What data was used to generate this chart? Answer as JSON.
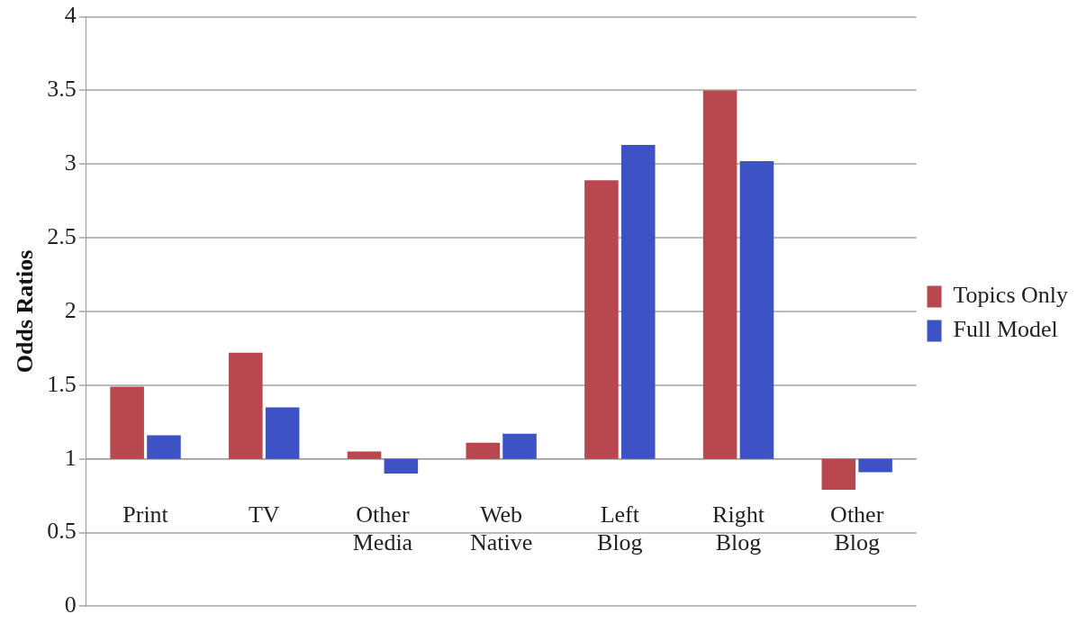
{
  "chart_data": {
    "type": "bar",
    "ylabel": "Odds Ratios",
    "categories": [
      "Print",
      "TV",
      "Other Media",
      "Web Native",
      "Left Blog",
      "Right Blog",
      "Other Blog"
    ],
    "series": [
      {
        "name": "Topics Only",
        "color": "#b8474f",
        "base": [
          1,
          1,
          1,
          1,
          1,
          1,
          1
        ],
        "values": [
          0.49,
          0.72,
          0.05,
          0.11,
          1.89,
          2.5,
          -0.21
        ]
      },
      {
        "name": "Full Model",
        "color": "#3d52c4",
        "base": [
          1,
          1,
          1,
          1,
          1,
          1,
          1
        ],
        "values": [
          0.16,
          0.35,
          -0.1,
          0.17,
          2.13,
          2.02,
          -0.09
        ]
      }
    ],
    "ylim": [
      0,
      4
    ],
    "yticks": [
      0,
      {
        "value": 0.5,
        "label": "0.5"
      },
      1,
      {
        "value": 1.5,
        "label": "1.5"
      },
      2,
      {
        "value": 2.5,
        "label": "2.5"
      },
      3,
      {
        "value": 3.5,
        "label": "3.5"
      },
      4
    ],
    "grid": "y",
    "legend": "right"
  }
}
